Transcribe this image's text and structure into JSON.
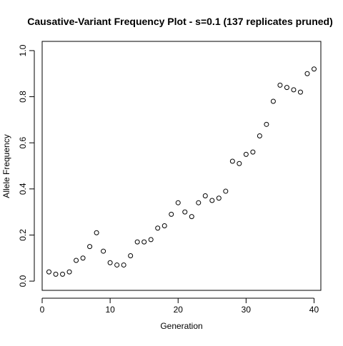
{
  "chart_data": {
    "type": "scatter",
    "title": "Causative-Variant Frequency Plot - s=0.1 (137 replicates pruned)",
    "xlabel": "Generation",
    "ylabel": "Allele Frequency",
    "xlim": [
      0,
      41
    ],
    "ylim": [
      -0.04,
      1.04
    ],
    "x_ticks": [
      0,
      10,
      20,
      30,
      40
    ],
    "x_tick_labels": [
      "0",
      "10",
      "20",
      "30",
      "40"
    ],
    "y_ticks": [
      0.0,
      0.2,
      0.4,
      0.6,
      0.8,
      1.0
    ],
    "y_tick_labels": [
      "0.0",
      "0.2",
      "0.4",
      "0.6",
      "0.8",
      "1.0"
    ],
    "grid": false,
    "marker": "open-circle",
    "marker_color": "#000000",
    "series": [
      {
        "x": [
          1,
          2,
          3,
          4,
          5,
          6,
          7,
          8,
          9,
          10,
          11,
          12,
          13,
          14,
          15,
          16,
          17,
          18,
          19,
          20,
          21,
          22,
          23,
          24,
          25,
          26,
          27,
          28,
          29,
          30,
          31,
          32,
          33,
          34,
          35,
          36,
          37,
          38,
          39,
          40
        ],
        "y": [
          0.04,
          0.03,
          0.03,
          0.04,
          0.09,
          0.1,
          0.15,
          0.21,
          0.13,
          0.08,
          0.07,
          0.07,
          0.11,
          0.17,
          0.17,
          0.18,
          0.23,
          0.24,
          0.29,
          0.34,
          0.3,
          0.28,
          0.34,
          0.37,
          0.35,
          0.36,
          0.39,
          0.52,
          0.51,
          0.55,
          0.56,
          0.63,
          0.68,
          0.78,
          0.85,
          0.84,
          0.83,
          0.82,
          0.9,
          0.92
        ]
      }
    ]
  }
}
